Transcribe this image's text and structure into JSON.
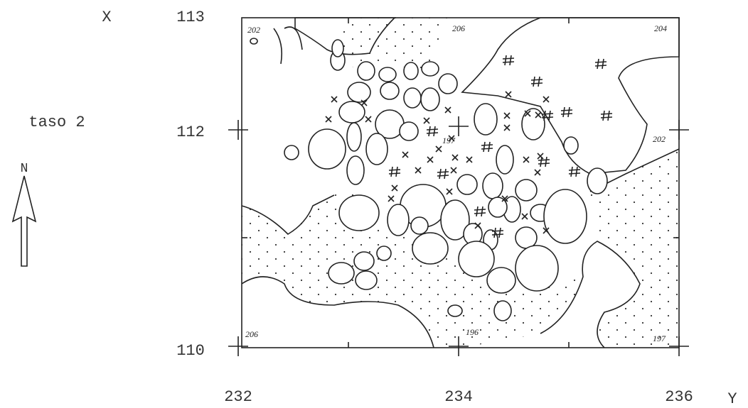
{
  "axis": {
    "x_label": "X",
    "y_label": "Y",
    "x_ticks": [
      "113",
      "112",
      "110"
    ],
    "y_ticks": [
      "232",
      "234",
      "236"
    ]
  },
  "layer": "taso 2",
  "north": "N",
  "elevations": [
    "202",
    "206",
    "204",
    "197",
    "202",
    "206",
    "196",
    "197"
  ]
}
